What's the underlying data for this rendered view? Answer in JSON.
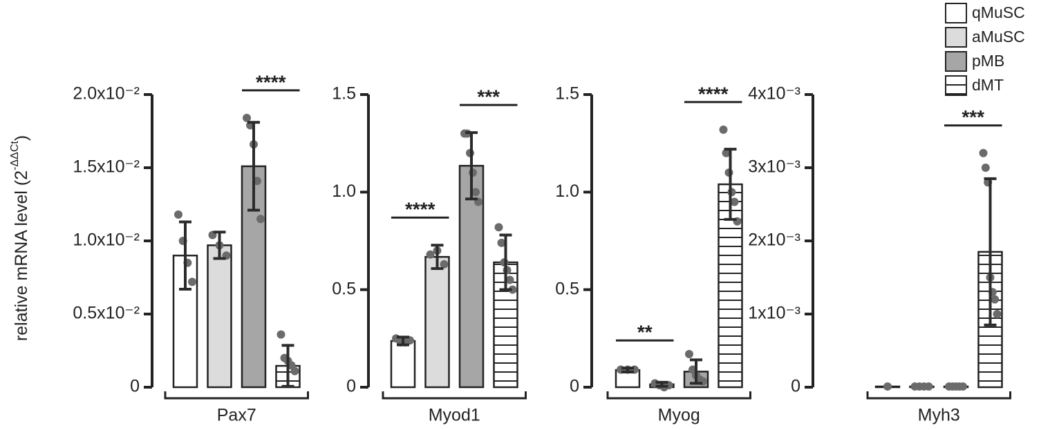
{
  "chart_data": {
    "type": "bar",
    "ylabel": [
      "relative mRNA level (2",
      "-ΔΔCt",
      ")"
    ],
    "legend": [
      {
        "name": "qMuSC",
        "color": "#ffffff"
      },
      {
        "name": "aMuSC",
        "color": "#dcdcdc"
      },
      {
        "name": "pMB",
        "color": "#a6a6a6"
      },
      {
        "name": "dMT",
        "color": "#ffffff",
        "hatch": true
      }
    ],
    "panels": [
      {
        "xlabel": "Pax7",
        "ylim": [
          0,
          0.02
        ],
        "yticks": [
          0,
          {
            "value": 0.005,
            "label": "0.5x10⁻²"
          },
          {
            "value": 0.01,
            "label": "1.0x10⁻²"
          },
          {
            "value": 0.015,
            "label": "1.5x10⁻²"
          },
          {
            "value": 0.02,
            "label": "2.0x10⁻²"
          }
        ],
        "values": [
          0.009,
          0.0097,
          0.0151,
          0.00146
        ],
        "errors": [
          0.0023,
          0.0009,
          0.003,
          0.0014
        ],
        "points": [
          [
            0.0118,
            0.01,
            0.0085,
            0.0072
          ],
          [
            0.0104,
            0.0097,
            0.009
          ],
          [
            0.0184,
            0.0179,
            0.0166,
            0.0141,
            0.0115
          ],
          [
            0.0036,
            0.002,
            0.0018,
            0.0015,
            0.0011
          ]
        ],
        "annotations": [
          {
            "text": "****",
            "between": [
              2,
              3
            ]
          }
        ]
      },
      {
        "xlabel": "Myod1",
        "ylim": [
          0,
          1.5
        ],
        "yticks": [
          0,
          0.5,
          {
            "value": 1,
            "label": "1.0"
          },
          1.5
        ],
        "values": [
          0.237,
          0.668,
          1.135,
          0.64
        ],
        "errors": [
          0.02,
          0.06,
          0.17,
          0.14
        ],
        "points": [
          [
            0.25,
            0.23,
            0.23,
            0.24
          ],
          [
            0.68,
            0.7,
            0.63
          ],
          [
            1.3,
            1.3,
            1.2,
            1.1,
            1.0,
            0.95
          ],
          [
            0.82,
            0.74,
            0.64,
            0.6,
            0.55,
            0.5
          ]
        ],
        "annotations": [
          {
            "text": "****",
            "between": [
              0,
              1
            ]
          },
          {
            "text": "***",
            "between": [
              2,
              3
            ]
          }
        ]
      },
      {
        "xlabel": "Myog",
        "ylim": [
          0,
          1.5
        ],
        "yticks": [
          0,
          0.5,
          {
            "value": 1,
            "label": "1.0"
          },
          1.5
        ],
        "values": [
          0.088,
          0.015,
          0.08,
          1.04
        ],
        "errors": [
          0.01,
          0.01,
          0.06,
          0.18
        ],
        "points": [
          [
            0.09,
            0.09,
            0.09
          ],
          [
            0.02,
            0.01,
            0.0,
            0.01
          ],
          [
            0.17,
            0.09,
            0.06,
            0.04,
            0.03
          ],
          [
            1.32,
            1.2,
            1.1,
            1.0,
            0.95,
            0.85
          ]
        ],
        "annotations": [
          {
            "text": "**",
            "between": [
              0,
              1
            ]
          },
          {
            "text": "****",
            "between": [
              2,
              3
            ]
          }
        ]
      },
      {
        "xlabel": "Myh3",
        "ylim": [
          0,
          0.004
        ],
        "yticks": [
          0,
          {
            "value": 0.001,
            "label": "1x10⁻³"
          },
          {
            "value": 0.002,
            "label": "2x10⁻³"
          },
          {
            "value": 0.003,
            "label": "3x10⁻³"
          },
          {
            "value": 0.004,
            "label": "4x10⁻³"
          }
        ],
        "values": [
          1e-05,
          1e-05,
          1e-05,
          0.00185
        ],
        "errors": [
          0,
          0,
          0,
          0.001
        ],
        "points": [
          [
            1e-05
          ],
          [
            1e-05,
            1e-05,
            1e-05,
            1e-05
          ],
          [
            1e-05,
            1e-05,
            1e-05,
            1e-05,
            1e-05
          ],
          [
            0.0032,
            0.003,
            0.0028,
            0.0015,
            0.0013,
            0.0012,
            0.001
          ]
        ],
        "annotations": [
          {
            "text": "***",
            "between": [
              2,
              3
            ]
          }
        ]
      }
    ]
  }
}
